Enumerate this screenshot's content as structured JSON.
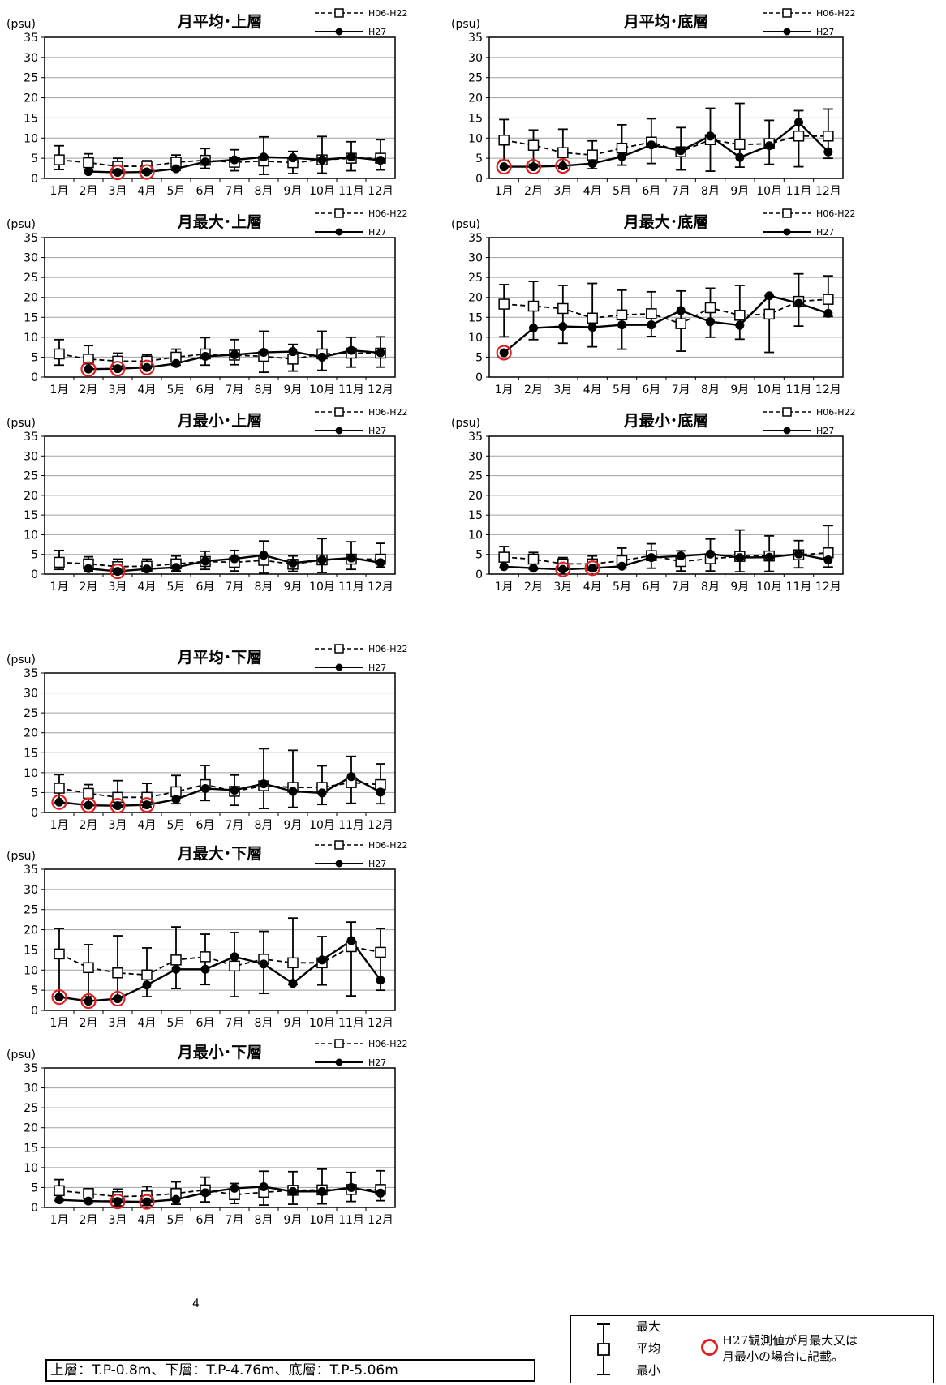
{
  "chart_data": [
    {
      "type": "line",
      "title": "月平均･上層",
      "ylabel": "(psu)",
      "ylim": [
        0,
        35
      ],
      "yticks": [
        "0",
        "5",
        "10",
        "15",
        "20",
        "25",
        "30",
        "35"
      ],
      "categories": [
        "1月",
        "2月",
        "3月",
        "4月",
        "5月",
        "6月",
        "7月",
        "8月",
        "9月",
        "10月",
        "11月",
        "12月"
      ],
      "legend": [
        "H06-H22",
        "H27"
      ],
      "series": [
        {
          "name": "H06-H22",
          "values": [
            4.6,
            3.9,
            3.0,
            3.0,
            4.0,
            4.5,
            4.0,
            4.3,
            3.9,
            4.6,
            5.0,
            5.0
          ],
          "max": [
            8.1,
            6.1,
            5.0,
            4.4,
            5.8,
            7.4,
            7.1,
            10.3,
            6.7,
            10.4,
            9.1,
            9.6
          ],
          "min": [
            2.2,
            2.1,
            1.3,
            1.2,
            2.0,
            2.5,
            1.9,
            1.0,
            1.2,
            1.3,
            1.9,
            2.1
          ]
        },
        {
          "name": "H27",
          "values": [
            null,
            1.7,
            1.5,
            1.6,
            2.4,
            4.1,
            4.6,
            5.3,
            5.1,
            4.6,
            5.3,
            4.5
          ]
        }
      ],
      "highlighted": [
        2,
        3
      ]
    },
    {
      "type": "line",
      "title": "月平均･底層",
      "ylabel": "(psu)",
      "ylim": [
        0,
        35
      ],
      "yticks": [
        "0",
        "5",
        "10",
        "15",
        "20",
        "25",
        "30",
        "35"
      ],
      "categories": [
        "1月",
        "2月",
        "3月",
        "4月",
        "5月",
        "6月",
        "7月",
        "8月",
        "9月",
        "10月",
        "11月",
        "12月"
      ],
      "legend": [
        "H06-H22",
        "H27"
      ],
      "series": [
        {
          "name": "H06-H22",
          "values": [
            9.5,
            8.2,
            6.4,
            5.8,
            7.5,
            9.0,
            6.6,
            9.6,
            8.4,
            8.6,
            10.5,
            10.5
          ],
          "max": [
            14.6,
            12.0,
            12.2,
            9.3,
            13.3,
            14.8,
            12.6,
            17.4,
            18.6,
            14.4,
            16.8,
            17.2
          ],
          "min": [
            4.5,
            3.5,
            2.6,
            2.4,
            3.3,
            3.7,
            2.1,
            1.8,
            2.8,
            3.5,
            2.9,
            5.0
          ]
        },
        {
          "name": "H27",
          "values": [
            2.9,
            2.9,
            3.1,
            3.7,
            5.4,
            8.3,
            6.9,
            10.5,
            5.2,
            8.1,
            13.9,
            6.6
          ]
        }
      ],
      "highlighted": [
        0,
        1,
        2
      ]
    },
    {
      "type": "line",
      "title": "月最大･上層",
      "ylabel": "(psu)",
      "ylim": [
        0,
        35
      ],
      "yticks": [
        "0",
        "5",
        "10",
        "15",
        "20",
        "25",
        "30",
        "35"
      ],
      "categories": [
        "1月",
        "2月",
        "3月",
        "4月",
        "5月",
        "6月",
        "7月",
        "8月",
        "9月",
        "10月",
        "11月",
        "12月"
      ],
      "legend": [
        "H06-H22",
        "H27"
      ],
      "series": [
        {
          "name": "H06-H22",
          "values": [
            5.8,
            4.5,
            4.0,
            4.0,
            5.0,
            5.8,
            5.5,
            5.2,
            4.5,
            5.8,
            6.0,
            6.0
          ],
          "max": [
            9.4,
            7.9,
            6.0,
            5.6,
            7.0,
            9.9,
            9.4,
            11.5,
            8.2,
            11.5,
            10.0,
            10.1
          ],
          "min": [
            3.0,
            2.2,
            2.2,
            2.2,
            3.0,
            3.0,
            3.1,
            1.2,
            1.5,
            1.7,
            2.5,
            2.5
          ]
        },
        {
          "name": "H27",
          "values": [
            null,
            2.0,
            2.1,
            2.4,
            3.4,
            5.2,
            5.6,
            6.2,
            6.4,
            5.0,
            6.7,
            6.1
          ]
        }
      ],
      "highlighted": [
        1,
        2,
        3
      ]
    },
    {
      "type": "line",
      "title": "月最大･底層",
      "ylabel": "(psu)",
      "ylim": [
        0,
        35
      ],
      "yticks": [
        "0",
        "5",
        "10",
        "15",
        "20",
        "25",
        "30",
        "35"
      ],
      "categories": [
        "1月",
        "2月",
        "3月",
        "4月",
        "5月",
        "6月",
        "7月",
        "8月",
        "9月",
        "10月",
        "11月",
        "12月"
      ],
      "legend": [
        "H06-H22",
        "H27"
      ],
      "series": [
        {
          "name": "H06-H22",
          "values": [
            18.3,
            17.8,
            17.2,
            14.8,
            15.6,
            15.9,
            13.4,
            17.4,
            15.5,
            15.8,
            19.0,
            19.5
          ],
          "max": [
            23.2,
            24.0,
            23.0,
            23.5,
            21.8,
            21.4,
            21.6,
            22.3,
            23.0,
            20.4,
            25.9,
            25.4
          ],
          "min": [
            10.1,
            9.4,
            8.5,
            7.6,
            7.0,
            10.2,
            6.5,
            10.0,
            9.5,
            6.2,
            12.8,
            15.2
          ]
        },
        {
          "name": "H27",
          "values": [
            6.1,
            12.3,
            12.7,
            12.5,
            13.1,
            13.1,
            16.7,
            13.9,
            13.0,
            20.4,
            18.5,
            16.0
          ]
        }
      ],
      "highlighted": [
        0
      ]
    },
    {
      "type": "line",
      "title": "月最小･上層",
      "ylabel": "(psu)",
      "ylim": [
        0,
        35
      ],
      "yticks": [
        "0",
        "5",
        "10",
        "15",
        "20",
        "25",
        "30",
        "35"
      ],
      "categories": [
        "1月",
        "2月",
        "3月",
        "4月",
        "5月",
        "6月",
        "7月",
        "8月",
        "9月",
        "10月",
        "11月",
        "12月"
      ],
      "legend": [
        "H06-H22",
        "H27"
      ],
      "series": [
        {
          "name": "H06-H22",
          "values": [
            3.0,
            2.6,
            1.9,
            2.0,
            2.6,
            3.2,
            3.0,
            3.5,
            2.5,
            3.6,
            3.8,
            3.8
          ],
          "max": [
            6.0,
            4.4,
            3.8,
            3.8,
            4.6,
            5.8,
            6.0,
            8.4,
            4.6,
            9.0,
            8.2,
            7.8
          ],
          "min": [
            1.2,
            0.8,
            0.4,
            0.6,
            0.8,
            1.2,
            0.8,
            0.2,
            0.7,
            0.4,
            1.2,
            1.8
          ]
        },
        {
          "name": "H27",
          "values": [
            null,
            1.4,
            0.7,
            1.3,
            1.7,
            3.3,
            3.9,
            4.8,
            2.8,
            3.6,
            4.1,
            2.9
          ]
        }
      ],
      "highlighted": [
        2
      ]
    },
    {
      "type": "line",
      "title": "月最小･底層",
      "ylabel": "(psu)",
      "ylim": [
        0,
        35
      ],
      "yticks": [
        "0",
        "5",
        "10",
        "15",
        "20",
        "25",
        "30",
        "35"
      ],
      "categories": [
        "1月",
        "2月",
        "3月",
        "4月",
        "5月",
        "6月",
        "7月",
        "8月",
        "9月",
        "10月",
        "11月",
        "12月"
      ],
      "legend": [
        "H06-H22",
        "H27"
      ],
      "series": [
        {
          "name": "H06-H22",
          "values": [
            4.3,
            3.8,
            2.6,
            2.6,
            3.4,
            4.7,
            3.2,
            3.9,
            4.5,
            4.6,
            4.9,
            5.4
          ],
          "max": [
            7.0,
            5.5,
            4.2,
            4.6,
            6.6,
            7.7,
            5.9,
            8.9,
            11.2,
            9.7,
            8.5,
            12.3
          ],
          "min": [
            1.6,
            1.2,
            1.0,
            1.0,
            1.6,
            1.5,
            0.8,
            0.8,
            0.6,
            0.7,
            1.6,
            1.8
          ]
        },
        {
          "name": "H27",
          "values": [
            1.9,
            1.5,
            1.2,
            1.5,
            2.0,
            4.2,
            4.6,
            5.1,
            4.2,
            4.3,
            5.1,
            3.6
          ]
        }
      ],
      "highlighted": [
        2,
        3
      ]
    },
    {
      "type": "line",
      "title": "月平均･下層",
      "ylabel": "(psu)",
      "ylim": [
        0,
        35
      ],
      "yticks": [
        "0",
        "5",
        "10",
        "15",
        "20",
        "25",
        "30",
        "35"
      ],
      "categories": [
        "1月",
        "2月",
        "3月",
        "4月",
        "5月",
        "6月",
        "7月",
        "8月",
        "9月",
        "10月",
        "11月",
        "12月"
      ],
      "legend": [
        "H06-H22",
        "H27"
      ],
      "series": [
        {
          "name": "H06-H22",
          "values": [
            6.1,
            4.8,
            3.8,
            3.8,
            5.2,
            7.0,
            5.3,
            6.7,
            6.3,
            6.3,
            7.5,
            7.0
          ],
          "max": [
            9.5,
            7.0,
            8.0,
            7.3,
            9.3,
            11.8,
            9.4,
            16.0,
            15.6,
            11.7,
            14.1,
            12.2
          ],
          "min": [
            2.5,
            2.2,
            1.4,
            1.4,
            2.2,
            3.0,
            1.8,
            1.0,
            1.3,
            2.0,
            2.3,
            2.2
          ]
        },
        {
          "name": "H27",
          "values": [
            2.6,
            1.8,
            1.7,
            1.9,
            3.3,
            6.0,
            5.6,
            7.2,
            5.3,
            4.9,
            9.0,
            5.1
          ]
        }
      ],
      "highlighted": [
        0,
        1,
        2,
        3
      ]
    },
    {
      "type": "line",
      "title": "月最大･下層",
      "ylabel": "(psu)",
      "ylim": [
        0,
        35
      ],
      "yticks": [
        "0",
        "5",
        "10",
        "15",
        "20",
        "25",
        "30",
        "35"
      ],
      "categories": [
        "1月",
        "2月",
        "3月",
        "4月",
        "5月",
        "6月",
        "7月",
        "8月",
        "9月",
        "10月",
        "11月",
        "12月"
      ],
      "legend": [
        "H06-H22",
        "H27"
      ],
      "series": [
        {
          "name": "H06-H22",
          "values": [
            14.0,
            10.6,
            9.3,
            8.8,
            12.5,
            13.3,
            11.0,
            12.7,
            11.8,
            11.8,
            15.8,
            14.4
          ],
          "max": [
            20.3,
            16.3,
            18.5,
            15.5,
            20.7,
            18.9,
            19.3,
            19.6,
            22.9,
            18.3,
            21.9,
            20.3
          ],
          "min": [
            3.4,
            3.4,
            3.2,
            3.4,
            5.4,
            6.4,
            3.4,
            4.2,
            6.4,
            6.3,
            3.6,
            5.0
          ]
        },
        {
          "name": "H27",
          "values": [
            3.3,
            2.3,
            2.9,
            6.3,
            10.2,
            10.2,
            13.3,
            11.5,
            6.7,
            12.5,
            17.3,
            7.5
          ]
        }
      ],
      "highlighted": [
        0,
        1,
        2
      ]
    },
    {
      "type": "line",
      "title": "月最小･下層",
      "ylabel": "(psu)",
      "ylim": [
        0,
        35
      ],
      "yticks": [
        "0",
        "5",
        "10",
        "15",
        "20",
        "25",
        "30",
        "35"
      ],
      "categories": [
        "1月",
        "2月",
        "3月",
        "4月",
        "5月",
        "6月",
        "7月",
        "8月",
        "9月",
        "10月",
        "11月",
        "12月"
      ],
      "legend": [
        "H06-H22",
        "H27"
      ],
      "series": [
        {
          "name": "H06-H22",
          "values": [
            4.2,
            3.5,
            2.7,
            2.9,
            3.5,
            4.4,
            3.2,
            3.8,
            4.3,
            4.4,
            4.5,
            4.5
          ],
          "max": [
            7.0,
            4.7,
            4.6,
            5.3,
            6.4,
            7.6,
            6.0,
            9.1,
            9.0,
            9.6,
            8.8,
            9.2
          ],
          "min": [
            1.7,
            1.1,
            0.4,
            0.5,
            0.8,
            1.4,
            1.0,
            0.6,
            0.8,
            0.9,
            1.5,
            1.7
          ]
        },
        {
          "name": "H27",
          "values": [
            1.9,
            1.6,
            1.5,
            1.4,
            2.0,
            3.7,
            4.8,
            5.2,
            4.0,
            4.0,
            5.0,
            3.6
          ]
        }
      ],
      "highlighted": [
        2,
        3
      ]
    }
  ],
  "colors": {
    "highlight": "#e02020",
    "axis": "#000000",
    "grid": "#a0a0a0"
  },
  "stray_mark": "4",
  "footnote": "上層：T.P-0.8m、下層：T.P-4.76m、底層：T.P-5.06m",
  "legend_box": {
    "max_label": "最大",
    "mean_label": "平均",
    "min_label": "最小",
    "note_line1": "H27観測値が月最大又は",
    "note_line2": "月最小の場合に記載。"
  }
}
